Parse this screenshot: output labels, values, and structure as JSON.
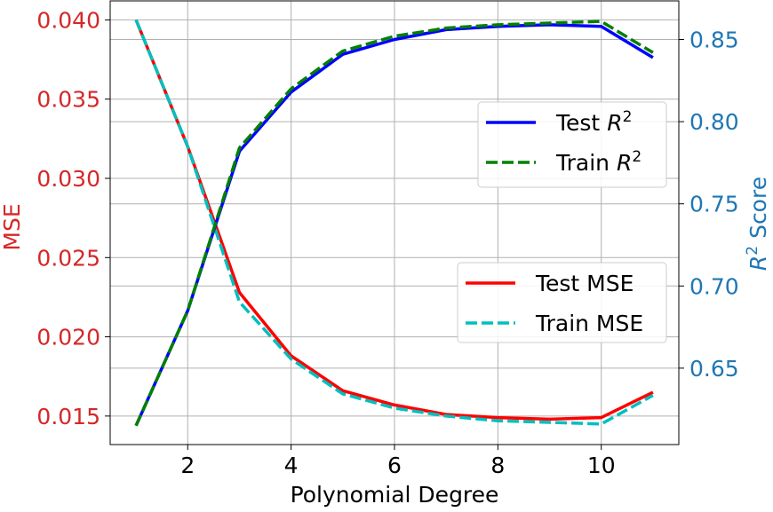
{
  "chart_data": {
    "type": "line",
    "xlabel": "Polynomial Degree",
    "ylabel_left": "MSE",
    "ylabel_right_prefix": "R",
    "ylabel_right_sup": "2",
    "ylabel_right_suffix": " Score",
    "xlim": [
      0.5,
      11.5
    ],
    "ylim_left": [
      0.0132,
      0.0412
    ],
    "ylim_right": [
      0.6035,
      0.8735
    ],
    "x_ticks": [
      "2",
      "4",
      "6",
      "8",
      "10"
    ],
    "y_left_ticks": [
      "0.015",
      "0.020",
      "0.025",
      "0.030",
      "0.035",
      "0.040"
    ],
    "y_right_ticks": [
      "0.65",
      "0.70",
      "0.75",
      "0.80",
      "0.85"
    ],
    "x": [
      1,
      2,
      3,
      4,
      5,
      6,
      7,
      8,
      9,
      10,
      11
    ],
    "grid": true,
    "series": [
      {
        "name": "Test MSE",
        "axis": "left",
        "color": "#ff0000",
        "dash": "solid",
        "values": [
          0.04,
          0.032,
          0.0228,
          0.0188,
          0.0166,
          0.0157,
          0.0151,
          0.0149,
          0.0148,
          0.0149,
          0.0165
        ]
      },
      {
        "name": "Train MSE",
        "axis": "left",
        "color": "#00bfbf",
        "dash": "dashed",
        "values": [
          0.04,
          0.032,
          0.0222,
          0.0186,
          0.0164,
          0.0155,
          0.015,
          0.0147,
          0.0146,
          0.0145,
          0.0163
        ]
      },
      {
        "name": "Test",
        "axis": "right",
        "color": "#0000ff",
        "dash": "solid",
        "values": [
          0.615,
          0.685,
          0.782,
          0.818,
          0.841,
          0.85,
          0.856,
          0.858,
          0.859,
          0.858,
          0.839
        ]
      },
      {
        "name": "Train",
        "axis": "right",
        "color": "#008000",
        "dash": "dashed",
        "values": [
          0.615,
          0.685,
          0.784,
          0.82,
          0.843,
          0.852,
          0.857,
          0.859,
          0.86,
          0.861,
          0.842
        ]
      }
    ],
    "legends": [
      {
        "placement": "upper-right",
        "items": [
          {
            "label": "Test",
            "sup": "2",
            "math": true,
            "color": "#0000ff",
            "dash": "solid"
          },
          {
            "label": "Train",
            "sup": "2",
            "math": true,
            "color": "#008000",
            "dash": "dashed"
          }
        ]
      },
      {
        "placement": "center-right",
        "items": [
          {
            "label": "Test MSE",
            "color": "#ff0000",
            "dash": "solid"
          },
          {
            "label": "Train MSE",
            "color": "#00bfbf",
            "dash": "dashed"
          }
        ]
      }
    ],
    "colors": {
      "left_axis": "#d62728",
      "right_axis": "#1f77b4"
    }
  }
}
